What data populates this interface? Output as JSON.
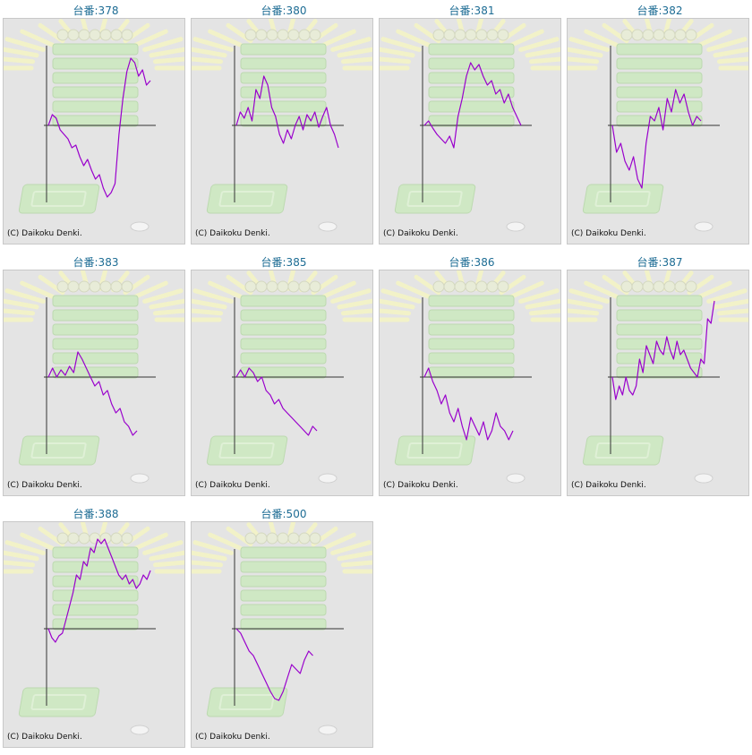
{
  "colors": {
    "line": "#9900cc",
    "axis": "#333333",
    "title": "#1d6c94",
    "panel_bg": "#e4e4e4",
    "panel_border": "#c8c8c8",
    "decor_green": "#cfe8c4",
    "decor_yellow": "#f2f2c8"
  },
  "chart_data": [
    {
      "type": "line",
      "title": "台番:378",
      "copyright": "(C) Daikoku Denki.",
      "values": [
        0,
        12,
        8,
        -5,
        -10,
        -15,
        -25,
        -22,
        -35,
        -45,
        -38,
        -50,
        -60,
        -55,
        -70,
        -80,
        -75,
        -65,
        -10,
        30,
        60,
        75,
        70,
        55,
        62,
        45,
        50
      ]
    },
    {
      "type": "line",
      "title": "台番:380",
      "copyright": "(C) Daikoku Denki.",
      "values": [
        0,
        15,
        8,
        20,
        5,
        40,
        30,
        55,
        45,
        20,
        10,
        -10,
        -20,
        -5,
        -15,
        0,
        10,
        -5,
        12,
        5,
        15,
        -2,
        10,
        20,
        0,
        -10,
        -25
      ]
    },
    {
      "type": "line",
      "title": "台番:381",
      "copyright": "(C) Daikoku Denki.",
      "values": [
        0,
        5,
        -3,
        -10,
        -15,
        -20,
        -12,
        -25,
        10,
        30,
        55,
        70,
        62,
        68,
        55,
        45,
        50,
        35,
        40,
        25,
        35,
        20,
        10,
        0
      ]
    },
    {
      "type": "line",
      "title": "台番:382",
      "copyright": "(C) Daikoku Denki.",
      "values": [
        0,
        -30,
        -20,
        -40,
        -50,
        -35,
        -60,
        -70,
        -20,
        10,
        5,
        20,
        -5,
        30,
        15,
        40,
        25,
        35,
        15,
        0,
        10,
        5
      ]
    },
    {
      "type": "line",
      "title": "台番:383",
      "copyright": "(C) Daikoku Denki.",
      "values": [
        0,
        10,
        0,
        8,
        2,
        12,
        5,
        28,
        20,
        10,
        0,
        -10,
        -5,
        -20,
        -15,
        -30,
        -40,
        -35,
        -50,
        -55,
        -65,
        -60
      ]
    },
    {
      "type": "line",
      "title": "台番:385",
      "copyright": "(C) Daikoku Denki.",
      "values": [
        0,
        8,
        0,
        10,
        5,
        -5,
        0,
        -15,
        -20,
        -30,
        -25,
        -35,
        -40,
        -45,
        -50,
        -55,
        -60,
        -65,
        -55,
        -60
      ]
    },
    {
      "type": "line",
      "title": "台番:386",
      "copyright": "(C) Daikoku Denki.",
      "values": [
        0,
        10,
        -5,
        -15,
        -30,
        -20,
        -40,
        -50,
        -35,
        -55,
        -70,
        -45,
        -55,
        -65,
        -50,
        -70,
        -60,
        -40,
        -55,
        -60,
        -70,
        -60
      ]
    },
    {
      "type": "line",
      "title": "台番:387",
      "copyright": "(C) Daikoku Denki.",
      "values": [
        0,
        -25,
        -10,
        -20,
        0,
        -15,
        -20,
        -10,
        20,
        5,
        35,
        25,
        15,
        40,
        30,
        25,
        45,
        30,
        20,
        40,
        25,
        30,
        20,
        10,
        5,
        0,
        20,
        15,
        65,
        60,
        85
      ]
    },
    {
      "type": "line",
      "title": "台番:388",
      "copyright": "(C) Daikoku Denki.",
      "values": [
        0,
        -10,
        -15,
        -8,
        -5,
        10,
        25,
        40,
        60,
        55,
        75,
        70,
        90,
        85,
        100,
        95,
        100,
        90,
        80,
        70,
        60,
        55,
        60,
        50,
        55,
        45,
        50,
        60,
        55,
        65
      ]
    },
    {
      "type": "line",
      "title": "台番:500",
      "copyright": "(C) Daikoku Denki.",
      "values": [
        0,
        -5,
        -15,
        -25,
        -30,
        -40,
        -50,
        -60,
        -70,
        -78,
        -80,
        -70,
        -55,
        -40,
        -45,
        -50,
        -35,
        -25,
        -30
      ]
    }
  ]
}
